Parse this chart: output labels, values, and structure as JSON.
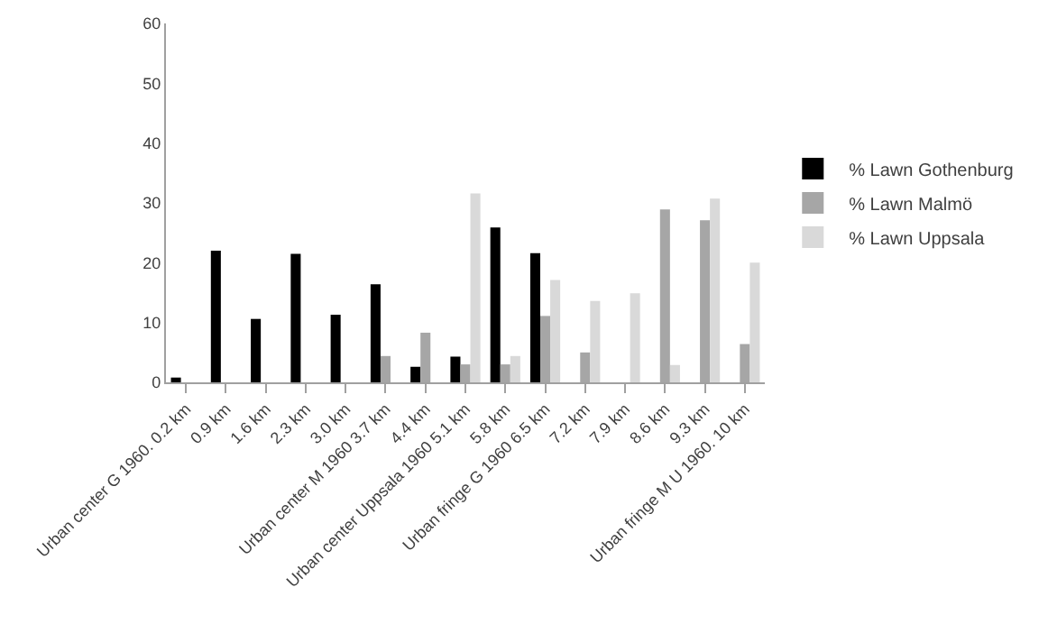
{
  "chart_data": {
    "type": "bar",
    "categories": [
      "Urban center G 1960. 0.2 km",
      "0.9 km",
      "1.6 km",
      "2.3 km",
      "3.0 km",
      "Urban center M 1960 3.7 km",
      "4.4 km",
      "Urban center Uppsala 1960 5.1 km",
      "5.8 km",
      "Urban fringe G 1960 6.5 km",
      "7.2 km",
      "7.9 km",
      "8.6 km",
      "9.3 km",
      "Urban fringe M U 1960. 10 km"
    ],
    "series": [
      {
        "name": "% Lawn Gothenburg",
        "color": "#000000",
        "values": [
          0.8,
          22,
          10.6,
          21.5,
          11.3,
          16.4,
          2.6,
          4.3,
          25.9,
          21.6,
          null,
          null,
          null,
          null,
          null
        ]
      },
      {
        "name": "% Lawn Malmö",
        "color": "#a6a6a6",
        "values": [
          null,
          null,
          null,
          null,
          null,
          4.4,
          8.3,
          3.0,
          3.0,
          11.1,
          5.0,
          null,
          28.9,
          27.1,
          6.4
        ]
      },
      {
        "name": "% Lawn Uppsala",
        "color": "#d9d9d9",
        "values": [
          null,
          null,
          null,
          null,
          null,
          null,
          null,
          31.6,
          4.4,
          17.1,
          13.6,
          14.9,
          2.9,
          30.7,
          20.0
        ]
      }
    ],
    "ylim": [
      0,
      60
    ],
    "yticks": [
      0,
      10,
      20,
      30,
      40,
      50,
      60
    ],
    "legend": "right"
  }
}
